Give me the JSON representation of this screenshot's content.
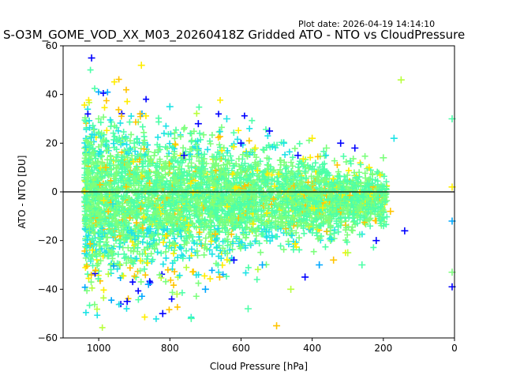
{
  "header": {
    "plot_date": "Plot date: 2026-04-19 14:14:10",
    "title": "S-O3M_GOME_VOD_XX_M03_20260418Z Gridded ATO - NTO vs CloudPressure"
  },
  "chart_data": {
    "type": "scatter",
    "title": "S-O3M_GOME_VOD_XX_M03_20260418Z Gridded ATO - NTO vs CloudPressure",
    "xlabel": "Cloud Pressure [hPa]",
    "ylabel": "ATO - NTO [DU]",
    "xlim": [
      1100,
      0
    ],
    "ylim": [
      -60,
      60
    ],
    "x_ticks": [
      1000,
      800,
      600,
      400,
      200,
      0
    ],
    "y_ticks": [
      -60,
      -40,
      -20,
      0,
      20,
      40,
      60
    ],
    "x_tick_labels": [
      "1000",
      "800",
      "600",
      "400",
      "200",
      "0"
    ],
    "y_tick_labels": [
      "−60",
      "−40",
      "−20",
      "0",
      "20",
      "40",
      "60"
    ],
    "reference_line_y": 0,
    "marker": "+",
    "grid": false,
    "colors": [
      "#0000ff",
      "#00a8ff",
      "#1ee3e6",
      "#4dffa8",
      "#7cff7c",
      "#b8ff3c",
      "#ffee00",
      "#ffc400"
    ],
    "series": [
      {
        "values": [
          {
            "x": 1020,
            "y": 55
          },
          {
            "x": 1000,
            "y": 30
          },
          {
            "x": 980,
            "y": 10
          },
          {
            "x": 960,
            "y": -5
          },
          {
            "x": 940,
            "y": -30
          },
          {
            "x": 920,
            "y": -45
          },
          {
            "x": 900,
            "y": 20
          },
          {
            "x": 880,
            "y": 52
          },
          {
            "x": 860,
            "y": -38
          },
          {
            "x": 840,
            "y": 8
          },
          {
            "x": 820,
            "y": -50
          },
          {
            "x": 800,
            "y": 35
          },
          {
            "x": 780,
            "y": -42
          },
          {
            "x": 760,
            "y": 15
          },
          {
            "x": 740,
            "y": -52
          },
          {
            "x": 720,
            "y": 28
          },
          {
            "x": 700,
            "y": -40
          },
          {
            "x": 680,
            "y": 10
          },
          {
            "x": 660,
            "y": -35
          },
          {
            "x": 640,
            "y": 30
          },
          {
            "x": 620,
            "y": -28
          },
          {
            "x": 600,
            "y": 20
          },
          {
            "x": 580,
            "y": -48
          },
          {
            "x": 560,
            "y": 18
          },
          {
            "x": 540,
            "y": -30
          },
          {
            "x": 520,
            "y": 25
          },
          {
            "x": 500,
            "y": -55
          },
          {
            "x": 480,
            "y": 20
          },
          {
            "x": 460,
            "y": -40
          },
          {
            "x": 440,
            "y": 15
          },
          {
            "x": 420,
            "y": -35
          },
          {
            "x": 400,
            "y": 22
          },
          {
            "x": 380,
            "y": -30
          },
          {
            "x": 360,
            "y": 18
          },
          {
            "x": 340,
            "y": -28
          },
          {
            "x": 320,
            "y": 20
          },
          {
            "x": 300,
            "y": -25
          },
          {
            "x": 280,
            "y": 18
          },
          {
            "x": 260,
            "y": -30
          },
          {
            "x": 240,
            "y": 10
          },
          {
            "x": 220,
            "y": -20
          },
          {
            "x": 200,
            "y": 14
          },
          {
            "x": 180,
            "y": -8
          },
          {
            "x": 170,
            "y": 22
          },
          {
            "x": 150,
            "y": 46
          },
          {
            "x": 140,
            "y": -16
          },
          {
            "x": 0,
            "y": 30
          },
          {
            "x": 0,
            "y": 2
          },
          {
            "x": 0,
            "y": -12
          },
          {
            "x": 0,
            "y": -33
          },
          {
            "x": 0,
            "y": -39
          }
        ]
      }
    ]
  }
}
